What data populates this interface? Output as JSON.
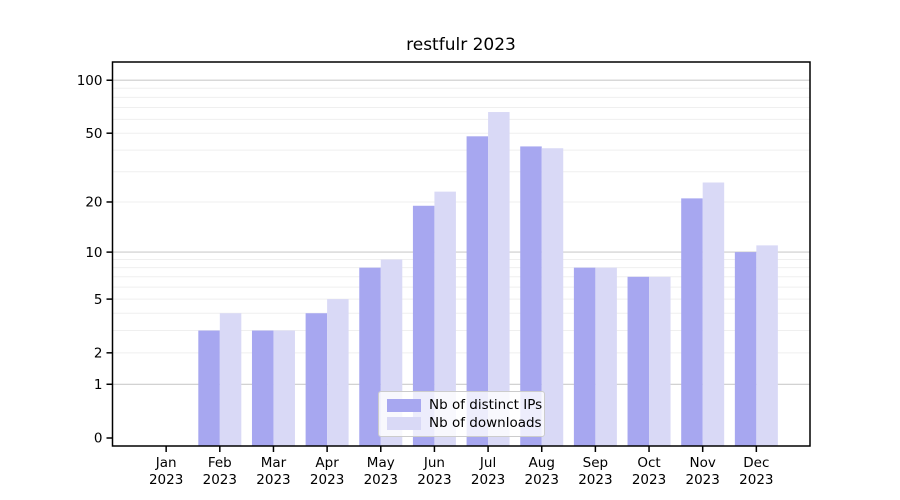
{
  "title": "restfulr 2023",
  "chart_data": {
    "type": "bar",
    "title": "restfulr 2023",
    "categories": [
      "Jan 2023",
      "Feb 2023",
      "Mar 2023",
      "Apr 2023",
      "May 2023",
      "Jun 2023",
      "Jul 2023",
      "Aug 2023",
      "Sep 2023",
      "Oct 2023",
      "Nov 2023",
      "Dec 2023"
    ],
    "series": [
      {
        "name": "Nb of distinct IPs",
        "color": "#a7a7f0",
        "values": [
          0,
          3,
          3,
          4,
          8,
          19,
          48,
          42,
          8,
          7,
          21,
          10
        ]
      },
      {
        "name": "Nb of downloads",
        "color": "#d9d9f6",
        "values": [
          0,
          4,
          3,
          5,
          9,
          23,
          66,
          41,
          8,
          7,
          26,
          11
        ]
      }
    ],
    "xlabel": "",
    "ylabel": "",
    "yscale": "log1p",
    "ylim": [
      -0.1,
      130
    ],
    "yticks": [
      0,
      1,
      2,
      5,
      10,
      20,
      50,
      100
    ],
    "major_gridlines": [
      1,
      10,
      100
    ],
    "minor_gridlines": [
      2,
      3,
      4,
      5,
      6,
      7,
      8,
      9,
      20,
      30,
      40,
      50,
      60,
      70,
      80,
      90
    ],
    "grid": true,
    "legend_position": "bottom-center"
  },
  "colors": {
    "bar_dark": "#a7a7f0",
    "bar_light": "#d9d9f6",
    "major_grid": "#cccccc",
    "minor_grid": "#efefef",
    "spine": "#000000",
    "text": "#000000",
    "legend_border": "#cccccc"
  }
}
